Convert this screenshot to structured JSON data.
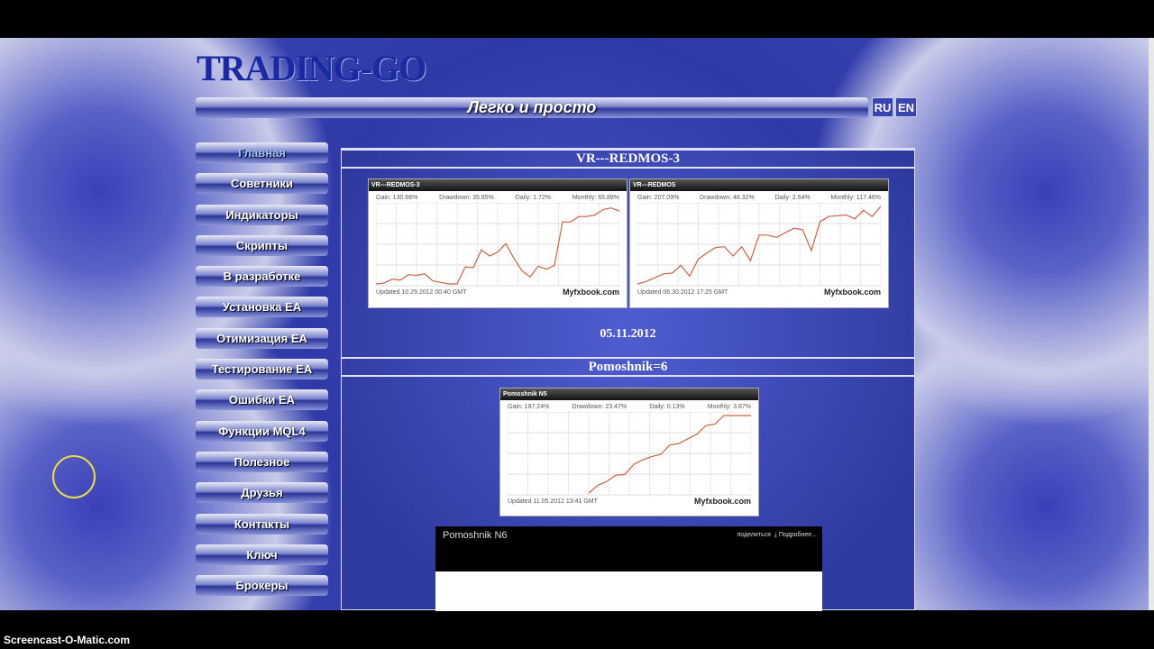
{
  "site": {
    "logo": "TRADING-GO",
    "slogan": "Легко и просто",
    "lang": [
      "RU",
      "EN"
    ]
  },
  "menu": [
    "Главная",
    "Советники",
    "Индикаторы",
    "Скрипты",
    "В разработке",
    "Установка EA",
    "Отимизация EA",
    "Тестирование EA",
    "Ошибки EA",
    "Функции MQL4",
    "Полезное",
    "Друзья",
    "Контакты",
    "Ключ",
    "Брокеры"
  ],
  "content": {
    "section1": "VR---REDMOS-3",
    "date": "05.11.2012",
    "section2": "Pomoshnik=6",
    "n6": {
      "title": "Pomoshnik N6",
      "share": "поделиться",
      "more": "Подробнее..."
    }
  },
  "widgets": [
    {
      "title": "VR---REDMOS-3",
      "gain": "Gain: 130.66%",
      "drawdown": "Drawdown: 35.85%",
      "daily": "Daily: 1.72%",
      "monthly": "Monthly: 65.88%",
      "updated": "Updated 10.29.2012 00:40 GMT",
      "brand": "Myfxbook.com"
    },
    {
      "title": "VR---REDMOS",
      "gain": "Gain: 207.09%",
      "drawdown": "Drawdown: 48.32%",
      "daily": "Daily: 2.64%",
      "monthly": "Monthly: 117.46%",
      "updated": "Updated 08.30.2012 17:25 GMT",
      "brand": "Myfxbook.com"
    },
    {
      "title": "Pomoshnik N5",
      "gain": "Gain: 187.24%",
      "drawdown": "Drawdown: 23.47%",
      "daily": "Daily: 0.13%",
      "monthly": "Monthly: 3.87%",
      "updated": "Updated 11.05.2012 13:41 GMT",
      "brand": "Myfxbook.com"
    }
  ],
  "chart_data": [
    {
      "type": "line",
      "values": [
        0,
        1,
        6,
        5,
        12,
        11,
        13,
        4,
        2,
        0,
        0,
        22,
        21,
        44,
        36,
        41,
        52,
        33,
        17,
        9,
        23,
        19,
        24,
        80,
        80,
        87,
        87,
        89,
        96,
        98,
        94
      ],
      "color": "#d06040"
    },
    {
      "type": "line",
      "values": [
        0,
        3,
        8,
        13,
        14,
        24,
        10,
        32,
        40,
        47,
        48,
        36,
        48,
        30,
        63,
        63,
        60,
        66,
        72,
        70,
        43,
        80,
        87,
        88,
        89,
        84,
        95,
        87,
        100
      ],
      "color": "#d06040"
    },
    {
      "type": "line",
      "values": [
        null,
        null,
        null,
        null,
        null,
        null,
        null,
        null,
        null,
        0,
        10,
        15,
        23,
        24,
        37,
        43,
        47,
        50,
        62,
        64,
        70,
        76,
        87,
        89,
        100,
        100,
        100,
        100
      ],
      "color": "#d06040"
    }
  ],
  "watermark": "Screencast-O-Matic.com"
}
